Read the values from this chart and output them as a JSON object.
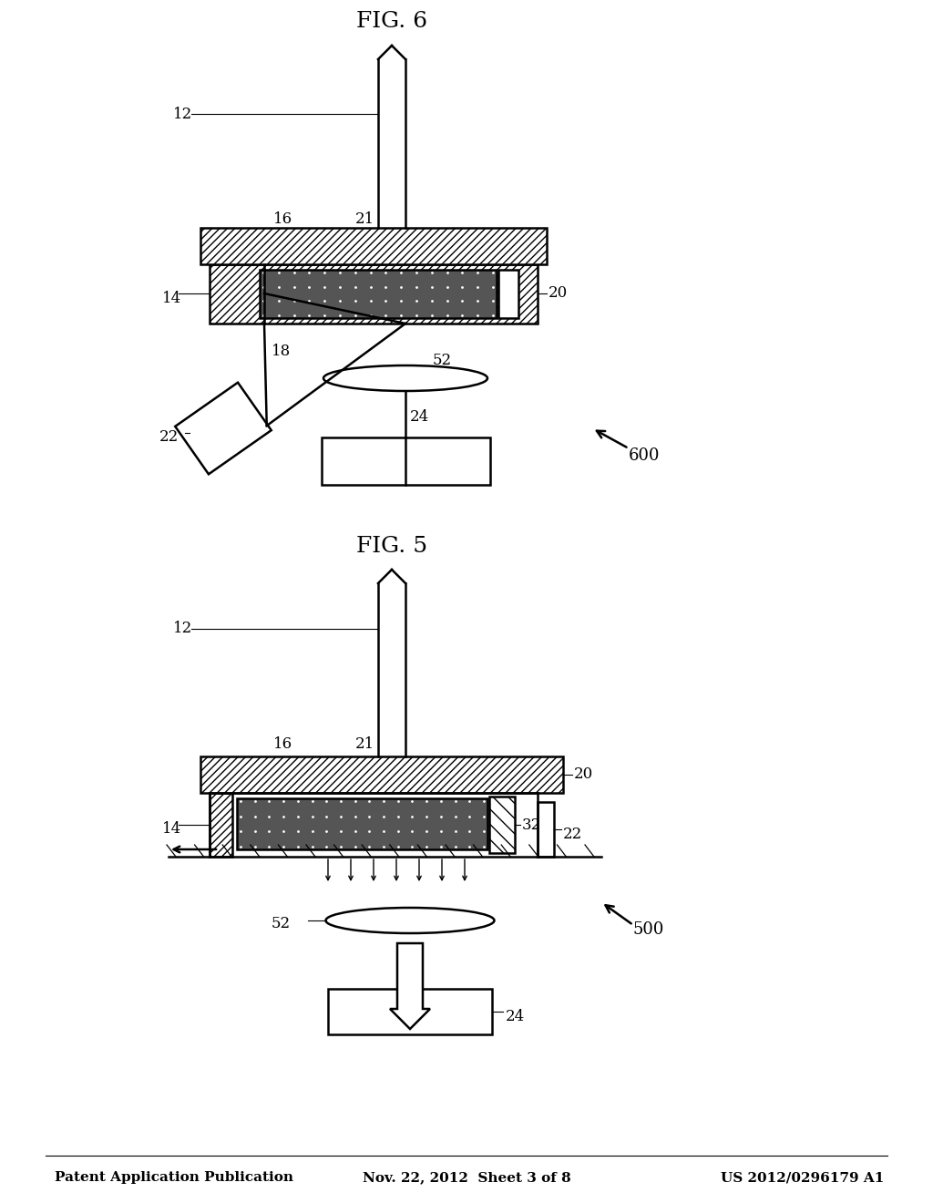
{
  "bg_color": "#ffffff",
  "header_left": "Patent Application Publication",
  "header_center": "Nov. 22, 2012  Sheet 3 of 8",
  "header_right": "US 2012/0296179 A1",
  "fig5_label": "FIG. 5",
  "fig6_label": "FIG. 6",
  "line_color": "#000000"
}
